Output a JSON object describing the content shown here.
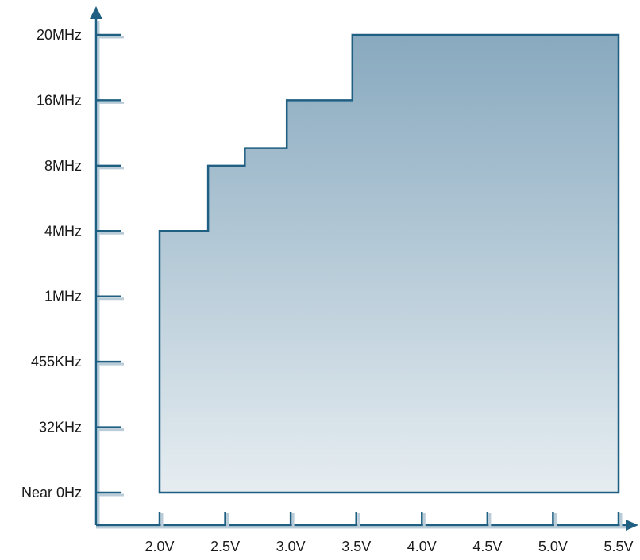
{
  "chart_data": {
    "type": "area",
    "title": "",
    "xlabel": "",
    "ylabel": "",
    "x_tick_labels": [
      "2.0V",
      "2.5V",
      "3.0V",
      "3.5V",
      "4.0V",
      "4.5V",
      "5.0V",
      "5.5V"
    ],
    "x_ticks": [
      2.0,
      2.5,
      3.0,
      3.5,
      4.0,
      4.5,
      5.0,
      5.5
    ],
    "xlim": [
      1.55,
      5.65
    ],
    "y_tick_labels": [
      "Near 0Hz",
      "32KHz",
      "455KHz",
      "1MHz",
      "4MHz",
      "8MHz",
      "16MHz",
      "20MHz"
    ],
    "y_scale": "categorical (ordinal levels)",
    "region_boundary": [
      {
        "x": 2.0,
        "y_level": 0
      },
      {
        "x": 2.0,
        "y_level": 4
      },
      {
        "x": 2.37,
        "y_level": 4
      },
      {
        "x": 2.37,
        "y_level": 5
      },
      {
        "x": 2.65,
        "y_level": 5
      },
      {
        "x": 2.65,
        "y_level": 5.27
      },
      {
        "x": 2.97,
        "y_level": 5.27
      },
      {
        "x": 2.97,
        "y_level": 6
      },
      {
        "x": 3.47,
        "y_level": 6
      },
      {
        "x": 3.47,
        "y_level": 7
      },
      {
        "x": 5.5,
        "y_level": 7
      },
      {
        "x": 5.5,
        "y_level": 0
      }
    ],
    "colors": {
      "fill_top": "#88a9bf",
      "fill_bottom": "#e6edf1",
      "outline": "#1f5f82",
      "axis": "#1f5f82",
      "tick_shadow": "#b9ccd8"
    },
    "grid": false,
    "legend": "none"
  }
}
